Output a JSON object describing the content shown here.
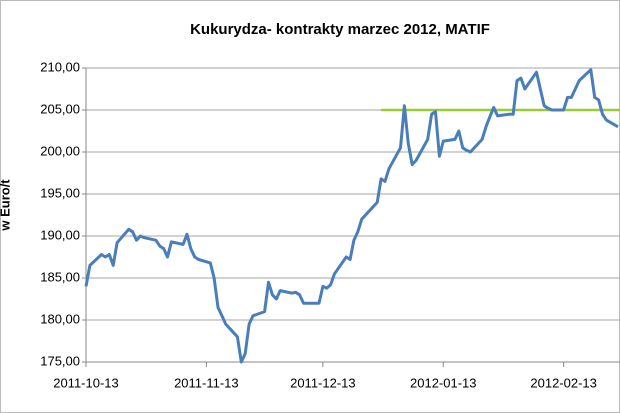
{
  "chart_data": {
    "type": "line",
    "title": "Kukurydza- kontrakty marzec 2012, MATIF",
    "y_label": "w Euro/t",
    "x": [
      "2011-10-13",
      "2011-10-14",
      "2011-10-17",
      "2011-10-18",
      "2011-10-19",
      "2011-10-20",
      "2011-10-21",
      "2011-10-24",
      "2011-10-25",
      "2011-10-26",
      "2011-10-27",
      "2011-10-28",
      "2011-10-31",
      "2011-11-01",
      "2011-11-02",
      "2011-11-03",
      "2011-11-04",
      "2011-11-07",
      "2011-11-08",
      "2011-11-09",
      "2011-11-10",
      "2011-11-11",
      "2011-11-14",
      "2011-11-15",
      "2011-11-16",
      "2011-11-17",
      "2011-11-18",
      "2011-11-21",
      "2011-11-22",
      "2011-11-23",
      "2011-11-24",
      "2011-11-25",
      "2011-11-28",
      "2011-11-29",
      "2011-11-30",
      "2011-12-01",
      "2011-12-02",
      "2011-12-05",
      "2011-12-06",
      "2011-12-07",
      "2011-12-08",
      "2011-12-09",
      "2011-12-12",
      "2011-12-13",
      "2011-12-14",
      "2011-12-15",
      "2011-12-16",
      "2011-12-19",
      "2011-12-20",
      "2011-12-21",
      "2011-12-22",
      "2011-12-23",
      "2011-12-27",
      "2011-12-28",
      "2011-12-29",
      "2011-12-30",
      "2012-01-02",
      "2012-01-03",
      "2012-01-04",
      "2012-01-05",
      "2012-01-06",
      "2012-01-09",
      "2012-01-10",
      "2012-01-11",
      "2012-01-12",
      "2012-01-13",
      "2012-01-16",
      "2012-01-17",
      "2012-01-18",
      "2012-01-19",
      "2012-01-20",
      "2012-01-23",
      "2012-01-24",
      "2012-01-25",
      "2012-01-26",
      "2012-01-27",
      "2012-01-30",
      "2012-01-31",
      "2012-02-01",
      "2012-02-02",
      "2012-02-03",
      "2012-02-06",
      "2012-02-07",
      "2012-02-08",
      "2012-02-09",
      "2012-02-10",
      "2012-02-13",
      "2012-02-14",
      "2012-02-15",
      "2012-02-16",
      "2012-02-17",
      "2012-02-20",
      "2012-02-21",
      "2012-02-22",
      "2012-02-23",
      "2012-02-24",
      "2012-02-27"
    ],
    "series": [
      {
        "color": "#4a7ebb",
        "values": [
          184,
          186.5,
          187.8,
          187.5,
          187.8,
          186.5,
          189.2,
          190.8,
          190.5,
          189.5,
          190,
          189.8,
          189.5,
          188.8,
          188.5,
          187.5,
          189.3,
          189,
          190.2,
          188.5,
          187.5,
          187.2,
          186.8,
          185,
          181.5,
          180.5,
          179.5,
          178,
          175,
          176,
          179.5,
          180.5,
          181,
          184.5,
          183,
          182.5,
          183.5,
          183.2,
          183.3,
          183,
          182,
          182,
          182,
          184,
          183.8,
          184.2,
          185.5,
          187.5,
          187.2,
          189.5,
          190.5,
          192,
          194,
          196.8,
          196.5,
          198,
          200.5,
          205.5,
          201,
          198.5,
          199,
          201.5,
          204.5,
          204.8,
          199.5,
          201.3,
          201.5,
          202.5,
          200.5,
          200.2,
          200,
          201.5,
          203,
          204.2,
          205.3,
          204.3,
          204.5,
          204.5,
          208.5,
          208.8,
          207.5,
          209.5,
          207.5,
          205.5,
          205.2,
          205,
          205,
          206.5,
          206.5,
          207.5,
          208.5,
          209.8,
          206.5,
          206.2,
          204.5,
          203.8,
          203
        ]
      }
    ],
    "reference_line": {
      "value": 205,
      "start": "2011-12-28",
      "color": "#99cc33"
    },
    "xlim": [
      "2011-10-13",
      "2012-02-27"
    ],
    "xticks": [
      "2011-10-13",
      "2011-11-13",
      "2011-12-13",
      "2012-01-13",
      "2012-02-13"
    ],
    "ylim": [
      175,
      210
    ],
    "yticks": [
      {
        "value": 175,
        "label": "175,00"
      },
      {
        "value": 180,
        "label": "180,00"
      },
      {
        "value": 185,
        "label": "185,00"
      },
      {
        "value": 190,
        "label": "190,00"
      },
      {
        "value": 195,
        "label": "195,00"
      },
      {
        "value": 200,
        "label": "200,00"
      },
      {
        "value": 205,
        "label": "205,00"
      },
      {
        "value": 210,
        "label": "210,00"
      }
    ],
    "grid": true
  }
}
